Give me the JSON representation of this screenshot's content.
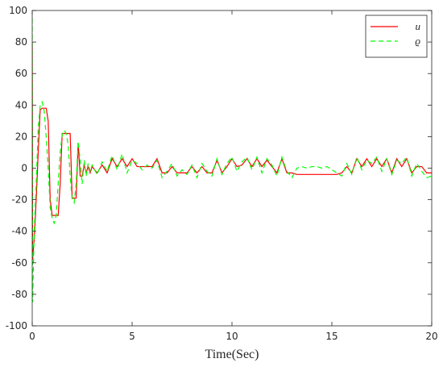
{
  "chart_data": {
    "type": "line",
    "xlabel": "Time(Sec)",
    "x": [
      0,
      0.02,
      0.1,
      0.2,
      0.3,
      0.4,
      0.5,
      0.6,
      0.7,
      0.8,
      0.9,
      1.0,
      1.1,
      1.2,
      1.3,
      1.4,
      1.5,
      1.6,
      1.7,
      1.8,
      1.9,
      2.0,
      2.1,
      2.2,
      2.3,
      2.4,
      2.5,
      2.6,
      2.7,
      2.8,
      2.9,
      3.0,
      3.25,
      3.5,
      3.75,
      4,
      4.25,
      4.5,
      4.75,
      5,
      5.25,
      5.5,
      5.75,
      6,
      6.25,
      6.5,
      6.75,
      7,
      7.25,
      7.5,
      7.75,
      8,
      8.25,
      8.5,
      8.75,
      9,
      9.25,
      9.5,
      9.75,
      10,
      10.25,
      10.5,
      10.75,
      11,
      11.25,
      11.5,
      11.75,
      12,
      12.25,
      12.5,
      12.75,
      13,
      13.25,
      13.5,
      13.75,
      14,
      14.25,
      14.5,
      14.75,
      15,
      15.25,
      15.5,
      15.75,
      16,
      16.25,
      16.5,
      16.75,
      17,
      17.25,
      17.5,
      17.75,
      18,
      18.25,
      18.5,
      18.75,
      19,
      19.25,
      19.5,
      19.75,
      20
    ],
    "series": [
      {
        "name": "u",
        "color": "#ff0000",
        "dash": "solid",
        "values": [
          80,
          -58,
          -45,
          -20,
          10,
          37,
          38,
          38,
          38,
          30,
          -20,
          -30,
          -30,
          -30,
          -30,
          -10,
          22,
          22,
          22,
          22,
          22,
          -19,
          -19,
          -19,
          16,
          -5,
          -5,
          2,
          -3,
          1,
          -3,
          1,
          -3,
          2,
          -3,
          6,
          1,
          6,
          1,
          6,
          1,
          1,
          1,
          1,
          6,
          -3,
          -3,
          1,
          -3,
          -3,
          -3,
          1,
          -3,
          1,
          -3,
          -3,
          5,
          -3,
          1,
          6,
          1,
          2,
          6,
          1,
          6,
          1,
          5,
          1,
          -3,
          6,
          -3,
          -3,
          -4,
          -4,
          -4,
          -4,
          -4,
          -4,
          -4,
          -4,
          -4,
          -3,
          1,
          -3,
          6,
          1,
          6,
          1,
          6,
          1,
          6,
          -3,
          6,
          1,
          6,
          -3,
          1,
          1,
          -3,
          -3
        ]
      },
      {
        "name": "ϱ",
        "color": "#00ff00",
        "dash": "dashed",
        "values": [
          95,
          -85,
          -40,
          -10,
          25,
          40,
          42,
          36,
          20,
          0,
          -25,
          -32,
          -35,
          -30,
          -10,
          10,
          21,
          24,
          22,
          15,
          -5,
          -20,
          -22,
          -10,
          17,
          5,
          -10,
          5,
          -5,
          3,
          -2,
          2,
          -4,
          4,
          -2,
          8,
          -1,
          9,
          -3,
          5,
          3,
          -1,
          2,
          0,
          5,
          -6,
          -2,
          3,
          -5,
          -1,
          -4,
          2,
          -6,
          3,
          -2,
          -5,
          6,
          -4,
          3,
          7,
          -2,
          4,
          7,
          -1,
          7,
          -3,
          6,
          2,
          -5,
          7,
          -2,
          -6,
          0,
          1,
          0,
          1,
          1,
          0,
          1,
          -1,
          -3,
          -5,
          3,
          -4,
          7,
          -1,
          5,
          3,
          7,
          -2,
          6,
          -4,
          5,
          3,
          7,
          -5,
          3,
          -2,
          -6,
          -5
        ]
      }
    ],
    "xlim": [
      0,
      20
    ],
    "xticks": [
      0,
      5,
      10,
      15,
      20
    ],
    "ylim": [
      -100,
      100
    ],
    "yticks": [
      -100,
      -80,
      -60,
      -40,
      -20,
      0,
      20,
      40,
      60,
      80,
      100
    ],
    "grid": false,
    "legend": "northeast"
  }
}
